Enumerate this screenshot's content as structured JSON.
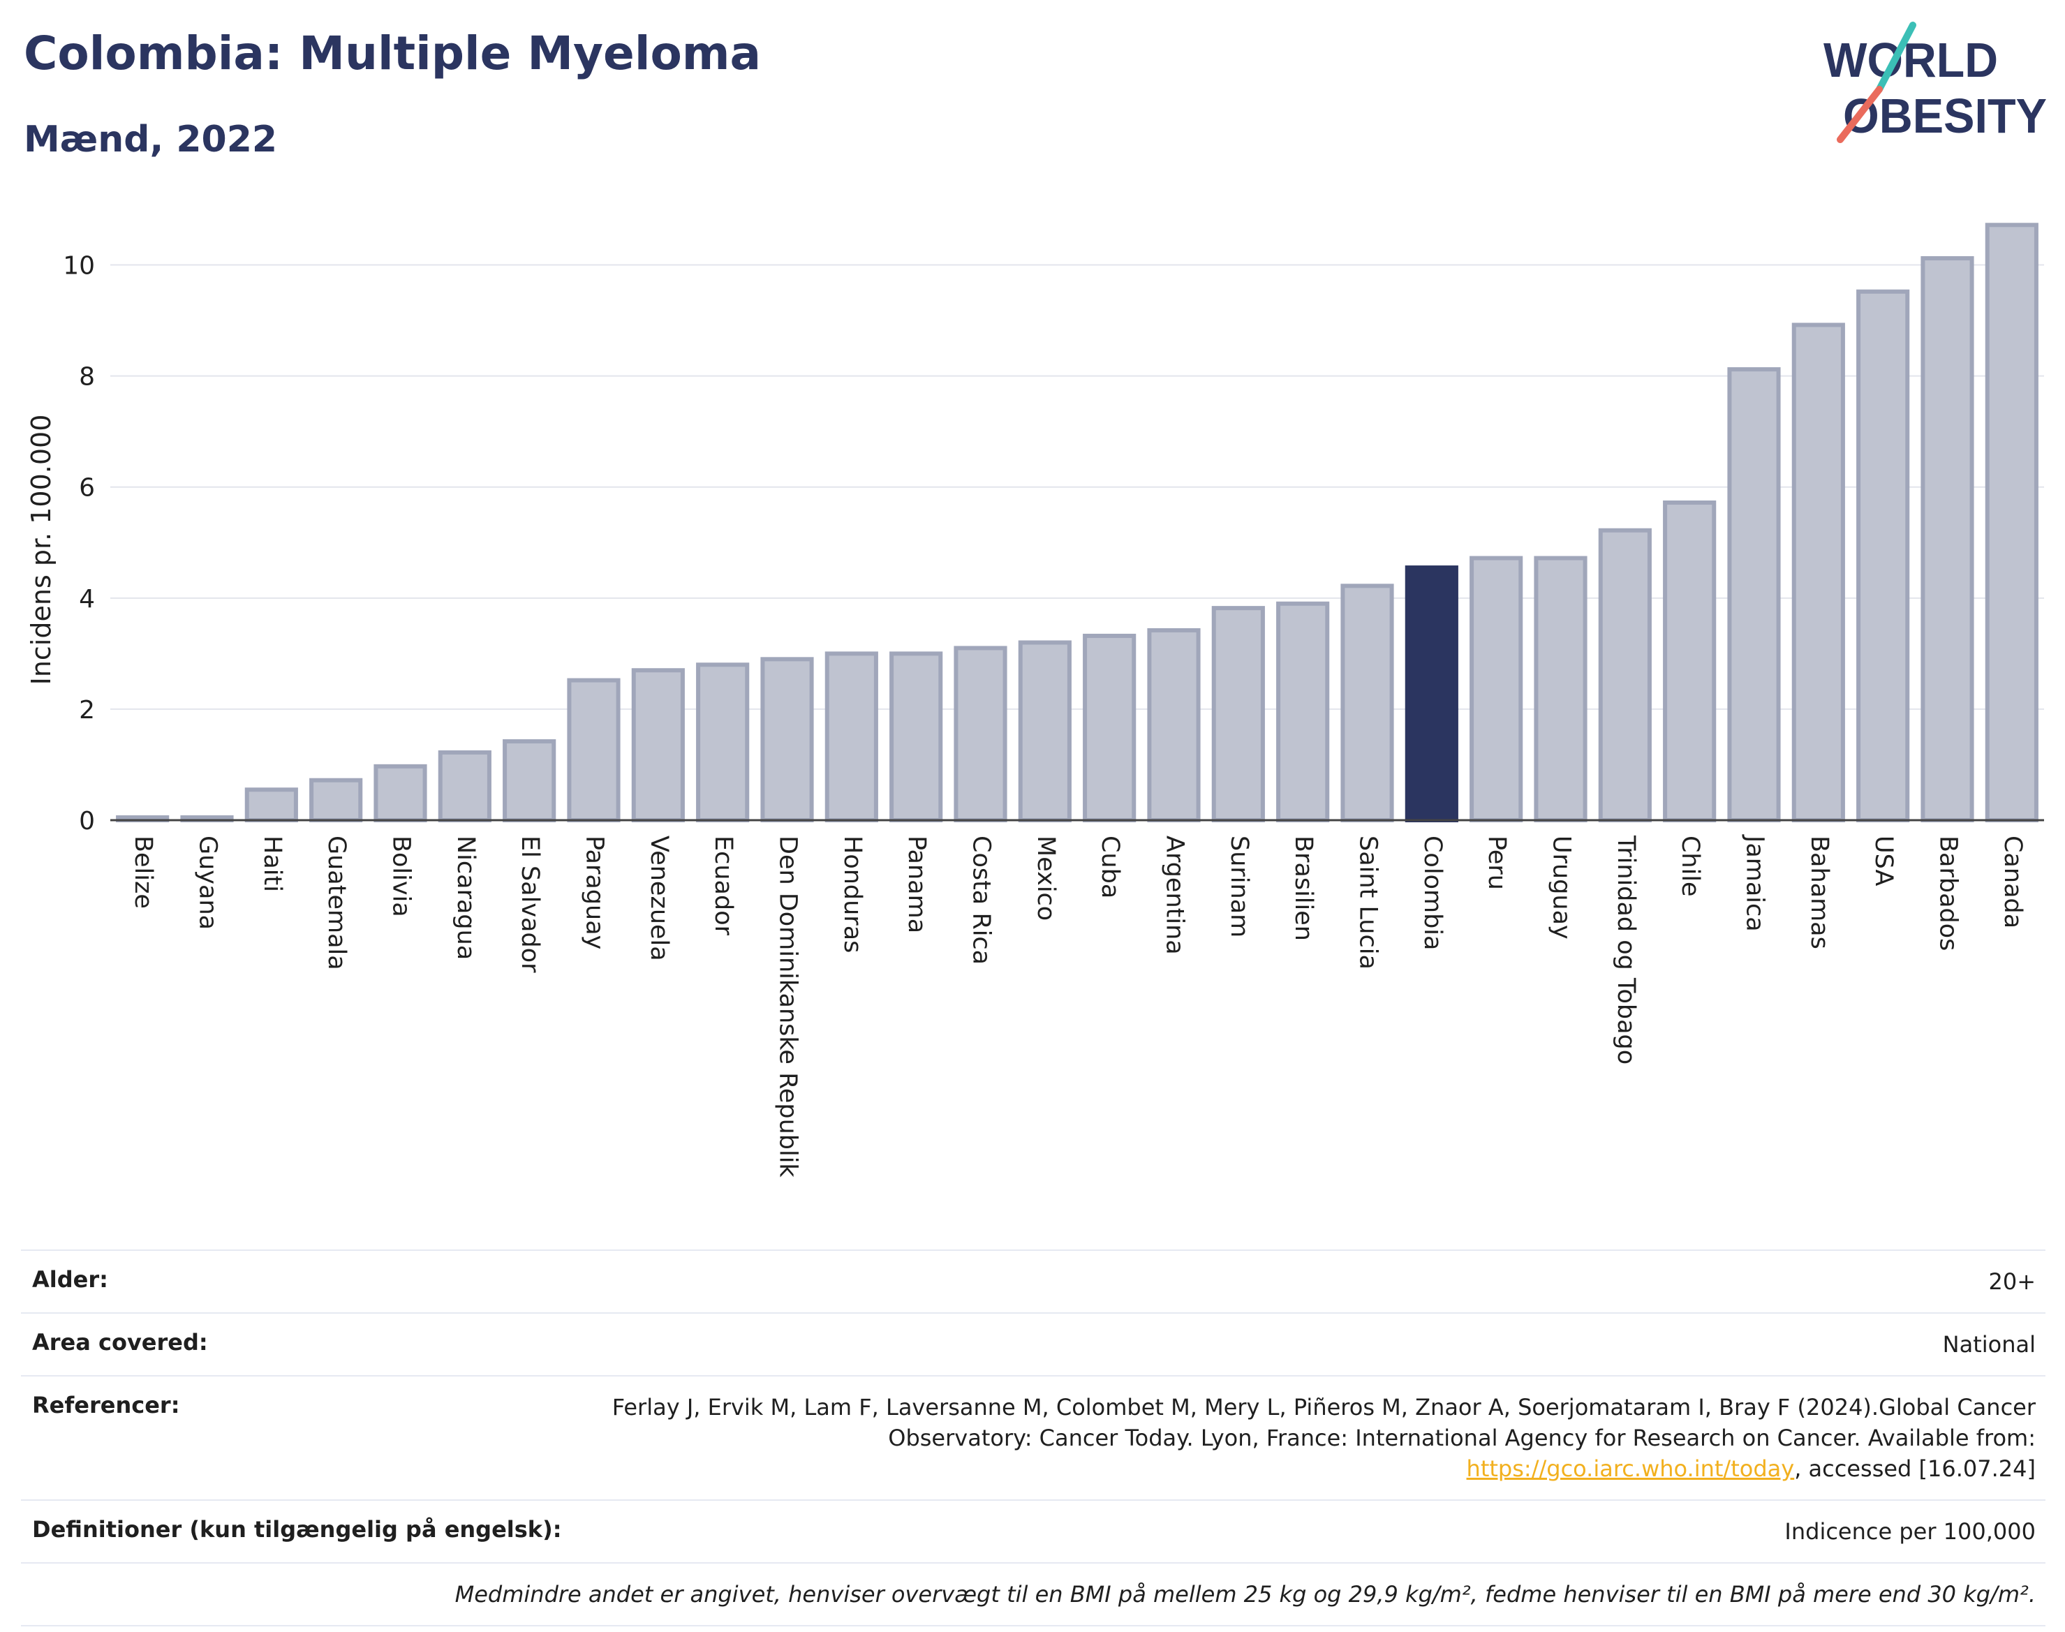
{
  "header": {
    "title": "Colombia: Multiple Myeloma",
    "subtitle": "Mænd, 2022"
  },
  "logo": {
    "line1": "WORLD",
    "line2": "OBESITY"
  },
  "chart_data": {
    "type": "bar",
    "ylabel": "Incidens pr. 100.000",
    "ylim": [
      0,
      11
    ],
    "yticks": [
      0,
      2,
      4,
      6,
      8,
      10
    ],
    "grid": true,
    "highlight": "Colombia",
    "colors": {
      "bar": "#bfc3d0",
      "bar_edge": "#a0a6ba",
      "highlight": "#2b3560"
    },
    "categories": [
      "Belize",
      "Guyana",
      "Haiti",
      "Guatemala",
      "Bolivia",
      "Nicaragua",
      "El Salvador",
      "Paraguay",
      "Venezuela",
      "Ecuador",
      "Den Dominikanske Republik",
      "Honduras",
      "Panama",
      "Costa Rica",
      "Mexico",
      "Cuba",
      "Argentina",
      "Surinam",
      "Brasilien",
      "Saint Lucia",
      "Colombia",
      "Peru",
      "Uruguay",
      "Trinidad og Tobago",
      "Chile",
      "Jamaica",
      "Bahamas",
      "USA",
      "Barbados",
      "Canada"
    ],
    "values": [
      0.05,
      0.05,
      0.55,
      0.72,
      0.97,
      1.22,
      1.42,
      2.52,
      2.7,
      2.8,
      2.9,
      3.0,
      3.0,
      3.1,
      3.2,
      3.32,
      3.42,
      3.82,
      3.9,
      4.22,
      4.55,
      4.72,
      4.72,
      5.22,
      5.72,
      8.12,
      8.92,
      9.52,
      10.12,
      10.72
    ]
  },
  "info": {
    "age_label": "Alder:",
    "age_value": "20+",
    "area_label": "Area covered:",
    "area_value": "National",
    "ref_label": "Referencer:",
    "ref_text1": "Ferlay J, Ervik M, Lam F, Laversanne M, Colombet M, Mery L, Piñeros M, Znaor A, Soerjomataram I, Bray F (2024).Global Cancer Observatory: Cancer Today. Lyon, France: International Agency for Research on Cancer. Available from: ",
    "ref_link": "https://gco.iarc.who.int/today",
    "ref_text2": ", accessed [16.07.24]",
    "def_label": "Definitioner (kun tilgængelig på engelsk):",
    "def_value": "Indicence per 100,000",
    "note": "Medmindre andet er angivet, henviser overvægt til en BMI på mellem 25 kg og 29,9 kg/m², fedme henviser til en BMI på mere end 30 kg/m²."
  }
}
